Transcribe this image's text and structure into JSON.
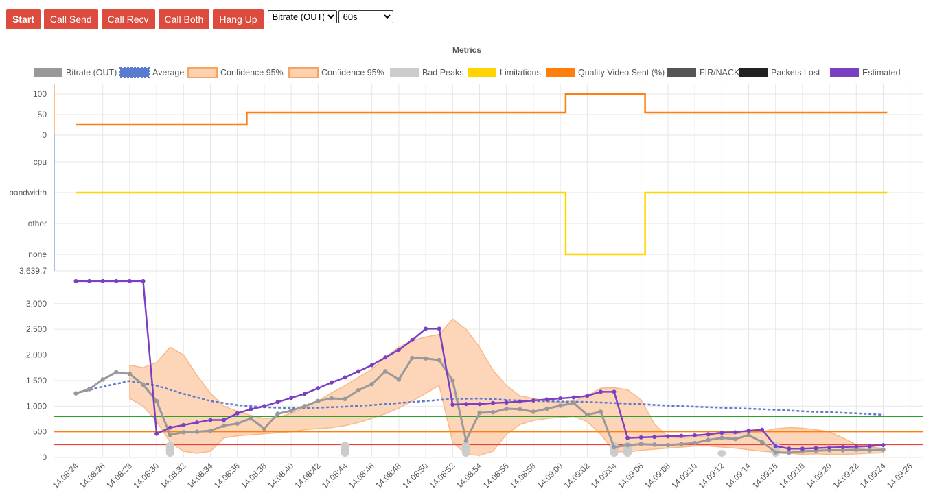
{
  "toolbar": {
    "buttons": [
      "Start",
      "Call Send",
      "Call Recv",
      "Call Both",
      "Hang Up"
    ],
    "metric_select": {
      "value": "Bitrate (OUT)"
    },
    "window_select": {
      "value": "60s"
    }
  },
  "chart_data": {
    "type": "line",
    "title": "Metrics",
    "legend": [
      {
        "label": "Bitrate (OUT)",
        "color": "#999999"
      },
      {
        "label": "Average",
        "color": "#5a7bd0"
      },
      {
        "label": "Confidence 95%",
        "color": "#fdd0b0"
      },
      {
        "label": "Confidence 95%",
        "color": "#fdd0b0"
      },
      {
        "label": "Bad Peaks",
        "color": "#cccccc"
      },
      {
        "label": "Limitations",
        "color": "#ffd400"
      },
      {
        "label": "Quality Video Sent (%)",
        "color": "#ff7f0e"
      },
      {
        "label": "FIR/NACK",
        "color": "#555555"
      },
      {
        "label": "Packets Lost",
        "color": "#222222"
      },
      {
        "label": "Estimated",
        "color": "#7b40c2"
      }
    ],
    "legend_position": "top",
    "x_tick_labels": [
      "14:08:24",
      "14:08:26",
      "14:08:28",
      "14:08:30",
      "14:08:32",
      "14:08:34",
      "14:08:36",
      "14:08:38",
      "14:08:40",
      "14:08:42",
      "14:08:44",
      "14:08:46",
      "14:08:48",
      "14:08:50",
      "14:08:52",
      "14:08:54",
      "14:08:56",
      "14:08:58",
      "14:09:00",
      "14:09:02",
      "14:09:04",
      "14:09:06",
      "14:09:08",
      "14:09:10",
      "14:09:12",
      "14:09:14",
      "14:09:16",
      "14:09:18",
      "14:09:20",
      "14:09:22",
      "14:09:24",
      "14:09:26"
    ],
    "quality_axis": {
      "ticks": [
        "100",
        "50",
        "0"
      ],
      "ylim": [
        0,
        100
      ]
    },
    "limitation_axis": {
      "categories": [
        "cpu",
        "bandwidth",
        "other",
        "none"
      ]
    },
    "bitrate_axis": {
      "ticks": [
        "3,639.7",
        "3,000",
        "2,500",
        "2,000",
        "1,500",
        "1,000",
        "500",
        "0"
      ],
      "ylim": [
        0,
        3639.7
      ]
    },
    "grid": true,
    "series": [
      {
        "name": "Quality Video Sent (%)",
        "axis": "quality",
        "stepped": true,
        "x": [
          0,
          12.7,
          36.4,
          42.3,
          60.3
        ],
        "values": [
          25,
          55,
          100,
          55,
          55
        ]
      },
      {
        "name": "Limitations",
        "axis": "limitation",
        "stepped": true,
        "x": [
          0,
          36.4,
          42.3,
          60.3
        ],
        "values": [
          "bandwidth",
          "none",
          "bandwidth",
          "bandwidth"
        ]
      },
      {
        "name": "Bitrate (OUT)",
        "axis": "bitrate",
        "x": [
          0,
          1,
          2,
          3,
          4,
          5,
          6,
          7,
          8,
          9,
          10,
          11,
          12,
          13,
          14,
          15,
          16,
          17,
          18,
          19,
          20,
          21,
          22,
          23,
          24,
          25,
          26,
          27,
          28,
          29,
          30,
          31,
          32,
          33,
          34,
          35,
          36,
          37,
          38,
          39,
          40,
          41,
          42,
          43,
          44,
          45,
          46,
          47,
          48,
          49,
          50,
          51,
          52,
          53,
          54,
          55,
          56,
          57,
          58,
          59,
          60
        ],
        "values": [
          1250,
          1330,
          1520,
          1660,
          1630,
          1420,
          1100,
          440,
          490,
          500,
          520,
          620,
          660,
          760,
          560,
          850,
          910,
          1000,
          1100,
          1150,
          1140,
          1310,
          1430,
          1680,
          1520,
          1940,
          1930,
          1900,
          1500,
          330,
          870,
          880,
          950,
          940,
          890,
          950,
          1010,
          1060,
          830,
          890,
          200,
          240,
          260,
          250,
          240,
          260,
          280,
          340,
          380,
          360,
          430,
          300,
          100,
          90,
          120,
          130,
          140,
          140,
          150,
          140,
          150
        ]
      },
      {
        "name": "Average",
        "axis": "bitrate",
        "dashed": true,
        "x": [
          0,
          2,
          4,
          6,
          8,
          10,
          12,
          14,
          16,
          18,
          20,
          22,
          24,
          26,
          28,
          30,
          32,
          34,
          36,
          38,
          40,
          42,
          44,
          46,
          48,
          50,
          52,
          54,
          56,
          58,
          60
        ],
        "values": [
          1250,
          1380,
          1490,
          1400,
          1240,
          1100,
          1020,
          980,
          960,
          970,
          990,
          1020,
          1060,
          1100,
          1140,
          1150,
          1120,
          1100,
          1090,
          1080,
          1060,
          1040,
          1010,
          990,
          970,
          950,
          930,
          900,
          880,
          860,
          830
        ]
      },
      {
        "name": "Estimated",
        "axis": "bitrate",
        "x": [
          0,
          1,
          2,
          3,
          4,
          5,
          6,
          7,
          8,
          9,
          10,
          11,
          12,
          13,
          14,
          15,
          16,
          17,
          18,
          19,
          20,
          21,
          22,
          23,
          24,
          25,
          26,
          27,
          28,
          29,
          30,
          31,
          32,
          33,
          34,
          35,
          36,
          37,
          38,
          39,
          40,
          41,
          42,
          43,
          44,
          45,
          46,
          47,
          48,
          49,
          50,
          51,
          52,
          53,
          54,
          55,
          56,
          57,
          58,
          59,
          60
        ],
        "values": [
          3440,
          3440,
          3440,
          3440,
          3440,
          3440,
          460,
          580,
          630,
          680,
          730,
          730,
          860,
          940,
          1000,
          1080,
          1160,
          1240,
          1350,
          1460,
          1560,
          1680,
          1800,
          1950,
          2100,
          2290,
          2510,
          2510,
          1030,
          1040,
          1040,
          1060,
          1070,
          1090,
          1110,
          1130,
          1150,
          1170,
          1200,
          1280,
          1280,
          380,
          390,
          400,
          410,
          420,
          430,
          450,
          480,
          490,
          520,
          540,
          220,
          170,
          170,
          180,
          190,
          200,
          210,
          220,
          240
        ]
      },
      {
        "name": "Confidence 95%",
        "axis": "bitrate",
        "band": true,
        "x": [
          4,
          5,
          6,
          7,
          8,
          9,
          10,
          11,
          12,
          13,
          14,
          15,
          16,
          17,
          18,
          19,
          20,
          21,
          22,
          23,
          24,
          25,
          26,
          27,
          28,
          29,
          30,
          31,
          32,
          33,
          34,
          35,
          36,
          37,
          38,
          39,
          40,
          41,
          42,
          43,
          44,
          45,
          46,
          47,
          48,
          49,
          50,
          51,
          52,
          53,
          54,
          55,
          56,
          57,
          58,
          59,
          60
        ],
        "upper": [
          1800,
          1750,
          1850,
          2150,
          2000,
          1600,
          1250,
          1000,
          900,
          820,
          760,
          780,
          860,
          970,
          1100,
          1260,
          1400,
          1560,
          1720,
          1950,
          2150,
          2280,
          2350,
          2400,
          2700,
          2500,
          2150,
          1700,
          1400,
          1200,
          1150,
          1100,
          1080,
          1100,
          1200,
          1350,
          1360,
          1320,
          1120,
          650,
          400,
          380,
          400,
          420,
          450,
          460,
          480,
          500,
          560,
          580,
          570,
          540,
          500,
          380,
          250,
          200,
          180
        ],
        "lower": [
          1150,
          1000,
          700,
          300,
          120,
          80,
          120,
          380,
          420,
          440,
          460,
          480,
          500,
          540,
          560,
          580,
          620,
          680,
          760,
          850,
          960,
          1100,
          1250,
          1400,
          300,
          60,
          40,
          120,
          450,
          640,
          720,
          760,
          780,
          800,
          700,
          450,
          120,
          100,
          140,
          160,
          180,
          200,
          220,
          220,
          200,
          180,
          150,
          120,
          100,
          80,
          60,
          70,
          60,
          60,
          70,
          80,
          90
        ]
      },
      {
        "name": "Bad Peaks",
        "axis": "bitrate",
        "x": [
          7,
          20,
          29,
          40,
          41,
          48,
          52
        ],
        "values": [
          100,
          100,
          100,
          100,
          100,
          50,
          80
        ]
      }
    ],
    "threshold_lines": [
      {
        "value": 800,
        "color": "#2ca02c"
      },
      {
        "value": 500,
        "color": "#ff7f0e"
      },
      {
        "value": 250,
        "color": "#e8433a"
      }
    ]
  }
}
